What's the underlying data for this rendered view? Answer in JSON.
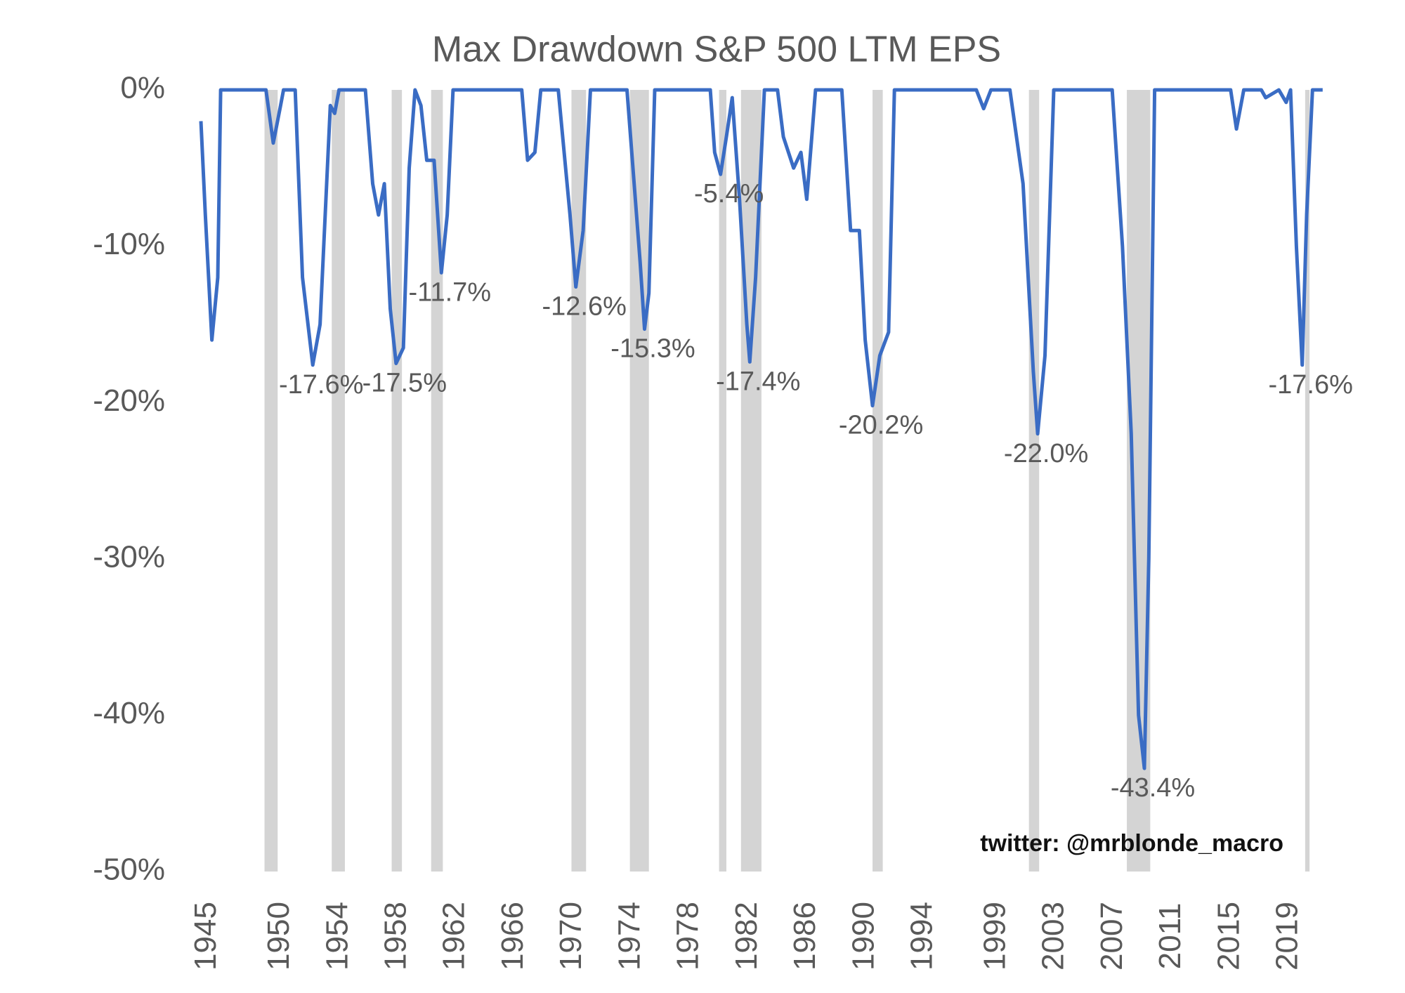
{
  "chart_data": {
    "type": "line",
    "title": "Max Drawdown S&P 500 LTM EPS",
    "x": [
      1944.55,
      1944.85,
      1945.3,
      1945.7,
      1945.9,
      1949.0,
      1949.5,
      1950,
      1950.2,
      1951,
      1951.5,
      1952.2,
      1952.7,
      1953.4,
      1953.7,
      1954,
      1955.8,
      1956.3,
      1956.7,
      1957.1,
      1957.5,
      1957.9,
      1958.4,
      1958.8,
      1959.2,
      1959.6,
      1960,
      1960.5,
      1961,
      1961.4,
      1961.8,
      1966.5,
      1966.9,
      1967.4,
      1967.8,
      1969,
      1969.8,
      1970.2,
      1970.7,
      1971.2,
      1973.7,
      1974.6,
      1974.9,
      1975.2,
      1975.6,
      1979.4,
      1979.7,
      1980.1,
      1980.5,
      1980.9,
      1981.4,
      1981.9,
      1982.1,
      1982.5,
      1983.1,
      1984,
      1984.4,
      1985.1,
      1985.6,
      1986,
      1986.3,
      1986.6,
      1988.4,
      1989,
      1989.6,
      1990,
      1990.5,
      1991,
      1991.6,
      1992,
      1997.6,
      1998.1,
      1998.6,
      1999.9,
      2000.8,
      2001.5,
      2001.8,
      2002.3,
      2002.9,
      2006.9,
      2007.6,
      2008.2,
      2008.7,
      2009.1,
      2009.4,
      2009.8,
      2015,
      2015.4,
      2015.9,
      2017.1,
      2017.4,
      2018.3,
      2018.8,
      2019.1,
      2019.5,
      2019.9,
      2020.2,
      2020.6,
      2021.3
    ],
    "series": [
      {
        "color": "#3a6cc4",
        "values": [
          -2,
          -8,
          -16,
          -12,
          0,
          0,
          -3.4,
          -1,
          0,
          0,
          -12,
          -17.6,
          -15,
          -1,
          -1.5,
          0,
          0,
          -6,
          -8,
          -6,
          -14,
          -17.5,
          -16.5,
          -5,
          0,
          -1,
          -4.5,
          -4.5,
          -11.7,
          -8,
          0,
          0,
          -4.5,
          -4,
          0,
          0,
          -8,
          -12.6,
          -9,
          0,
          0,
          -11,
          -15.3,
          -13,
          0,
          0,
          -4,
          -5.4,
          -3,
          -0.5,
          -7,
          -15,
          -17.4,
          -12,
          0,
          0,
          -3,
          -5,
          -4,
          -7,
          -3.5,
          0,
          0,
          -9,
          -9,
          -16,
          -20.2,
          -17,
          -15.5,
          0,
          0,
          -1.2,
          0,
          0,
          -6,
          -18,
          -22,
          -17,
          0,
          0,
          -10,
          -22,
          -40,
          -43.4,
          -30,
          0,
          0,
          -2.5,
          0,
          0,
          -0.5,
          0,
          -0.8,
          0,
          -10,
          -17.6,
          -8,
          0,
          0
        ]
      }
    ],
    "shaded_ranges": [
      [
        1948.9,
        1949.8
      ],
      [
        1953.5,
        1954.4
      ],
      [
        1957.6,
        1958.3
      ],
      [
        1960.3,
        1961.1
      ],
      [
        1969.9,
        1970.9
      ],
      [
        1973.9,
        1975.2
      ],
      [
        1980,
        1980.5
      ],
      [
        1981.5,
        1982.9
      ],
      [
        1990.5,
        1991.2
      ],
      [
        2001.2,
        2001.9
      ],
      [
        2007.9,
        2009.5
      ],
      [
        2020.1,
        2020.4
      ]
    ],
    "shade_color": "#d4d4d4",
    "annotations": [
      {
        "x": 1952.2,
        "y": -17.6,
        "label": "-17.6%"
      },
      {
        "x": 1957.9,
        "y": -17.5,
        "label": "-17.5%"
      },
      {
        "x": 1961,
        "y": -11.7,
        "label": "-11.7%"
      },
      {
        "x": 1970.2,
        "y": -12.6,
        "label": "-12.6%"
      },
      {
        "x": 1974.9,
        "y": -15.3,
        "label": "-15.3%"
      },
      {
        "x": 1980.1,
        "y": -5.4,
        "label": "-5.4%"
      },
      {
        "x": 1982.1,
        "y": -17.4,
        "label": "-17.4%"
      },
      {
        "x": 1990.5,
        "y": -20.2,
        "label": "-20.2%"
      },
      {
        "x": 2001.8,
        "y": -22,
        "label": "-22.0%"
      },
      {
        "x": 2009.1,
        "y": -43.4,
        "label": "-43.4%"
      },
      {
        "x": 2019.9,
        "y": -17.6,
        "label": "-17.6%"
      }
    ],
    "source": "twitter: @mrblonde_macro",
    "xlim": [
      1944.5,
      2021.5
    ],
    "xticks": [
      1945,
      1950,
      1954,
      1958,
      1962,
      1966,
      1970,
      1974,
      1978,
      1982,
      1986,
      1990,
      1994,
      1999,
      2003,
      2007,
      2011,
      2015,
      2019
    ],
    "ylim": [
      -50,
      0
    ],
    "yticks": [
      {
        "value": 0,
        "label": "0%"
      },
      {
        "value": -10,
        "label": "-10%"
      },
      {
        "value": -20,
        "label": "-20%"
      },
      {
        "value": -30,
        "label": "-30%"
      },
      {
        "value": -40,
        "label": "-40%"
      },
      {
        "value": -50,
        "label": "-50%"
      }
    ]
  }
}
